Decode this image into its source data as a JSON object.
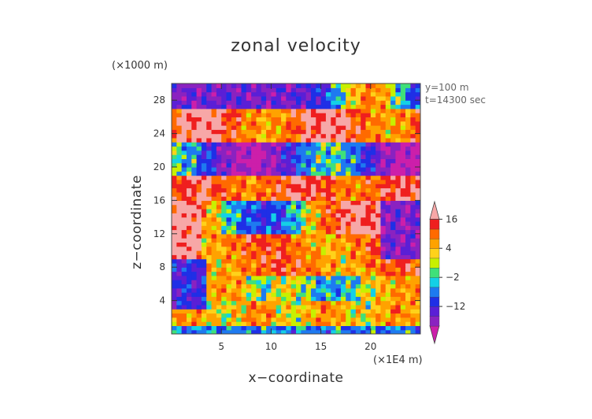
{
  "chart_data": {
    "type": "heatmap",
    "title": "zonal velocity",
    "xlabel": "x−coordinate",
    "ylabel": "z−coordinate",
    "x_unit_label": "(×1E4 m)",
    "y_unit_label": "(×1000 m)",
    "annotations": [
      "y=100 m",
      "t=14300 sec"
    ],
    "xlim": [
      0,
      25
    ],
    "ylim": [
      0,
      30
    ],
    "x_ticks": [
      5,
      10,
      15,
      20
    ],
    "y_ticks": [
      4,
      8,
      12,
      16,
      20,
      24,
      28
    ],
    "colorbar": {
      "tick_labels": [
        "16",
        "4",
        "−2",
        "−12"
      ],
      "tick_values": [
        16,
        4,
        -2,
        -12
      ],
      "levels": [
        -20,
        -16,
        -12,
        -8,
        -4,
        -2,
        0,
        2,
        4,
        8,
        12,
        16,
        20
      ],
      "colors": [
        "#cc1faa",
        "#8a22c0",
        "#5a1fd6",
        "#1f2fe6",
        "#1e7af0",
        "#14d0e6",
        "#3fe07a",
        "#c8f000",
        "#ffd21a",
        "#ffa200",
        "#ff6a00",
        "#ef1f1f",
        "#f7a7a7"
      ],
      "extend": "both"
    }
  }
}
